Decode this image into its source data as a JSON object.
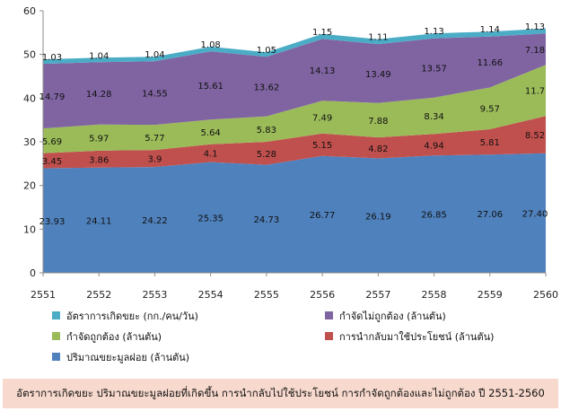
{
  "chart_data": {
    "type": "area",
    "stacked": true,
    "categories": [
      "2551",
      "2552",
      "2553",
      "2554",
      "2555",
      "2556",
      "2557",
      "2558",
      "2559",
      "2560"
    ],
    "ylim": [
      0,
      60
    ],
    "yticks": [
      "0",
      "10",
      "20",
      "30",
      "40",
      "50",
      "60"
    ],
    "grid": false,
    "legend_position": "bottom",
    "series": [
      {
        "name": "ปริมาณขยะมูลฝอย (ล้านตัน)",
        "color": "#4f81bd",
        "values": [
          23.93,
          24.11,
          24.22,
          25.35,
          24.73,
          26.77,
          26.19,
          26.85,
          27.06,
          27.4
        ],
        "labels": [
          "23.93",
          "24.11",
          "24.22",
          "25.35",
          "24.73",
          "26.77",
          "26.19",
          "26.85",
          "27.06",
          "27.40"
        ]
      },
      {
        "name": "การนำกลับมาใช้ประโยชน์ (ล้านตัน)",
        "color": "#c0504d",
        "values": [
          3.45,
          3.86,
          3.9,
          4.1,
          5.28,
          5.15,
          4.82,
          4.94,
          5.81,
          8.52
        ],
        "labels": [
          "3.45",
          "3.86",
          "3.9",
          "4.1",
          "5.28",
          "5.15",
          "4.82",
          "4.94",
          "5.81",
          "8.52"
        ]
      },
      {
        "name": "กำจัดถูกต้อง (ล้านตัน)",
        "color": "#9bbb59",
        "values": [
          5.69,
          5.97,
          5.77,
          5.64,
          5.83,
          7.49,
          7.88,
          8.34,
          9.57,
          11.7
        ],
        "labels": [
          "5.69",
          "5.97",
          "5.77",
          "5.64",
          "5.83",
          "7.49",
          "7.88",
          "8.34",
          "9.57",
          "11.7"
        ]
      },
      {
        "name": "กำจัดไม่ถูกต้อง (ล้านตัน)",
        "color": "#8064a2",
        "values": [
          14.79,
          14.28,
          14.55,
          15.61,
          13.62,
          14.13,
          13.49,
          13.57,
          11.66,
          7.18
        ],
        "labels": [
          "14.79",
          "14.28",
          "14.55",
          "15.61",
          "13.62",
          "14.13",
          "13.49",
          "13.57",
          "11.66",
          "7.18"
        ]
      },
      {
        "name": "อัตราการเกิดขยะ (กก./คน/วัน)",
        "color": "#4bacc6",
        "values": [
          1.03,
          1.04,
          1.04,
          1.08,
          1.05,
          1.15,
          1.11,
          1.13,
          1.14,
          1.13
        ],
        "labels": [
          "1.03",
          "1.04",
          "1.04",
          "1.08",
          "1.05",
          "1.15",
          "1.11",
          "1.13",
          "1.14",
          "1.13"
        ]
      }
    ],
    "legend_order": [
      4,
      3,
      2,
      1,
      0
    ]
  },
  "caption": "อัตราการเกิดขยะ ปริมาณขยะมูลฝอยที่เกิดขึ้น การนำกลับไปใช้ประโยชน์ การกำจัดถูกต้องและไม่ถูกต้อง ปี 2551-2560"
}
